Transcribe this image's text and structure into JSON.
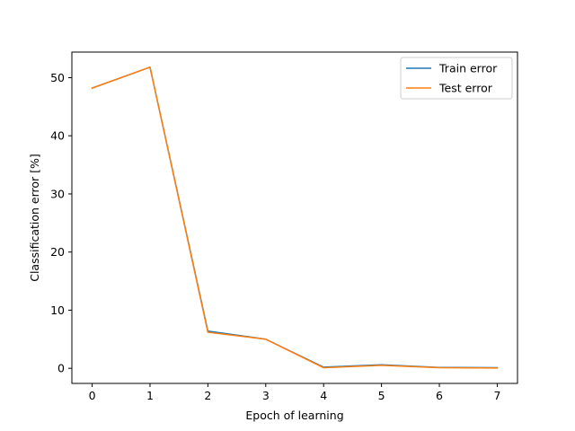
{
  "chart_data": {
    "type": "line",
    "title": "",
    "xlabel": "Epoch of learning",
    "ylabel": "Classification error [%]",
    "x": [
      0,
      1,
      2,
      3,
      4,
      5,
      6,
      7
    ],
    "xlim": [
      -0.35,
      7.35
    ],
    "ylim": [
      -2.6,
      54.4
    ],
    "xticks": [
      "0",
      "1",
      "2",
      "3",
      "4",
      "5",
      "6",
      "7"
    ],
    "yticks": [
      "0",
      "10",
      "20",
      "30",
      "40",
      "50"
    ],
    "grid": false,
    "legend_position": "upper right",
    "series": [
      {
        "name": "Train error",
        "color": "#1f77b4",
        "values": [
          48.2,
          51.8,
          6.4,
          5.0,
          0.2,
          0.6,
          0.15,
          0.1
        ]
      },
      {
        "name": "Test error",
        "color": "#ff7f0e",
        "values": [
          48.2,
          51.8,
          6.2,
          5.0,
          0.1,
          0.5,
          0.1,
          0.05
        ]
      }
    ]
  }
}
